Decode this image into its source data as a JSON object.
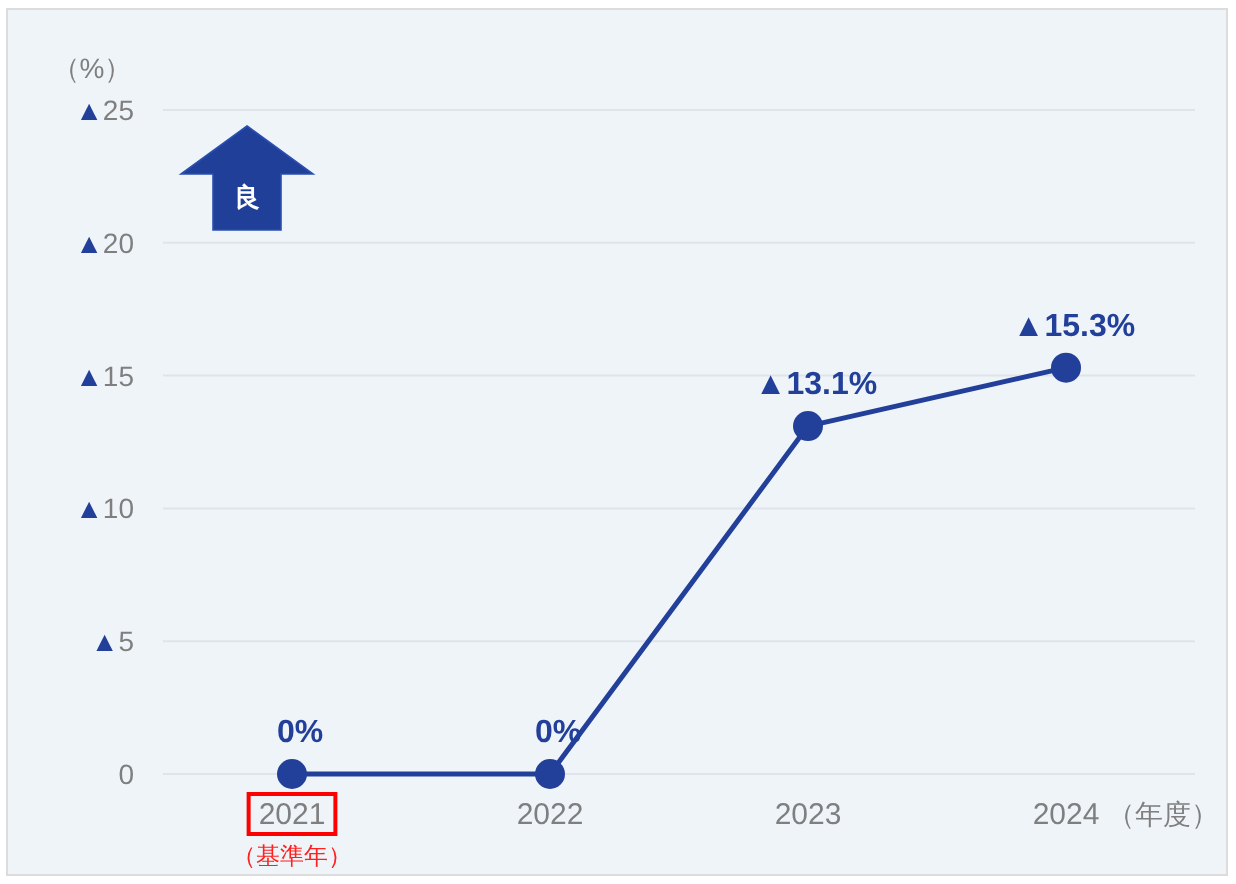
{
  "chart_data": {
    "type": "line",
    "categories": [
      "2021",
      "2022",
      "2023",
      "2024"
    ],
    "series": [
      {
        "color": "#22409a",
        "values": [
          0,
          0,
          13.1,
          15.3
        ],
        "value_labels": [
          "0%",
          "0%",
          "▲13.1%",
          "▲15.3%"
        ]
      }
    ],
    "ylim": [
      0,
      25
    ],
    "yticks": [
      0,
      {
        "value": 5,
        "label": "▲5"
      },
      {
        "value": 10,
        "label": "▲10"
      },
      {
        "value": 15,
        "label": "▲15"
      },
      {
        "value": 20,
        "label": "▲20"
      },
      {
        "value": 25,
        "label": "▲25"
      }
    ],
    "ylabel": "（%）",
    "xlabel": "（年度）",
    "annotations": [
      "良",
      "（基準年）"
    ],
    "grid": "y",
    "marker": "circle",
    "line_style": "solid"
  }
}
